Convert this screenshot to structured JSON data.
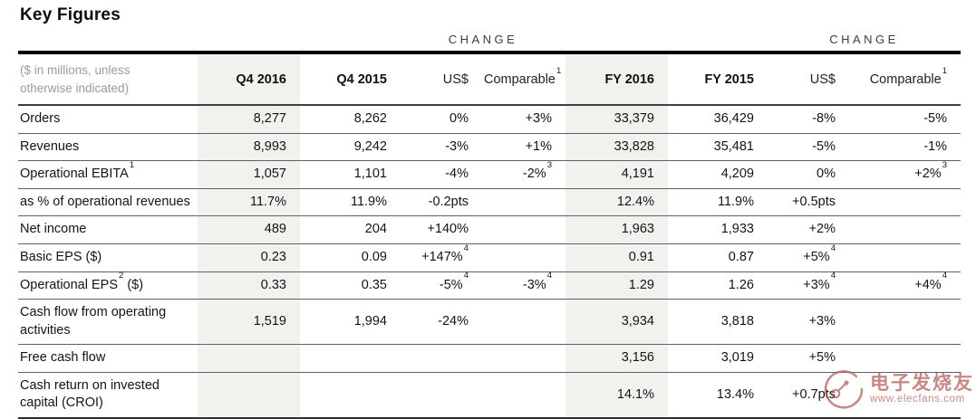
{
  "title": "Key Figures",
  "table": {
    "note": "($ in millions, unless otherwise indicated)",
    "change_label_left": "CHANGE",
    "change_label_right": "CHANGE",
    "columns": [
      "Q4 2016",
      "Q4 2015",
      "US$",
      "Comparable^1^",
      "FY 2016",
      "FY 2015",
      "US$",
      "Comparable^1^"
    ],
    "rows": [
      {
        "label": "Orders",
        "cells": [
          "8,277",
          "8,262",
          "0%",
          "+3%",
          "33,379",
          "36,429",
          "-8%",
          "-5%"
        ]
      },
      {
        "label": "Revenues",
        "cells": [
          "8,993",
          "9,242",
          "-3%",
          "+1%",
          "33,828",
          "35,481",
          "-5%",
          "-1%"
        ]
      },
      {
        "label": "Operational EBITA^1^",
        "cells": [
          "1,057",
          "1,101",
          "-4%",
          "-2%^3^",
          "4,191",
          "4,209",
          "0%",
          "+2%^3^"
        ]
      },
      {
        "label": "as % of operational revenues",
        "cells": [
          "11.7%",
          "11.9%",
          "-0.2pts",
          "",
          "12.4%",
          "11.9%",
          "+0.5pts",
          ""
        ]
      },
      {
        "label": "Net income",
        "cells": [
          "489",
          "204",
          "+140%",
          "",
          "1,963",
          "1,933",
          "+2%",
          ""
        ]
      },
      {
        "label": "Basic EPS ($)",
        "cells": [
          "0.23",
          "0.09",
          "+147%^4^",
          "",
          "0.91",
          "0.87",
          "+5%^4^",
          ""
        ]
      },
      {
        "label": "Operational EPS^2^ ($)",
        "cells": [
          "0.33",
          "0.35",
          "-5%^4^",
          "-3%^4^",
          "1.29",
          "1.26",
          "+3%^4^",
          "+4%^4^"
        ]
      },
      {
        "label": "Cash flow from operating activities",
        "cells": [
          "1,519",
          "1,994",
          "-24%",
          "",
          "3,934",
          "3,818",
          "+3%",
          ""
        ]
      },
      {
        "label": "Free cash flow",
        "cells": [
          "",
          "",
          "",
          "",
          "3,156",
          "3,019",
          "+5%",
          ""
        ]
      },
      {
        "label": "Cash return on invested capital (CROI)",
        "cells": [
          "",
          "",
          "",
          "",
          "14.1%",
          "13.4%",
          "+0.7pts",
          ""
        ]
      }
    ]
  },
  "watermark": {
    "site_name": "电子发烧友",
    "site_url": "www.elecfans.com"
  },
  "colors": {
    "shaded_column": "#f1f1ee",
    "top_rule": "#000000",
    "header_rule": "#3f3f3f",
    "row_rule": "#606060",
    "note_text": "#9b9b99",
    "watermark_red": "#b4625e"
  }
}
